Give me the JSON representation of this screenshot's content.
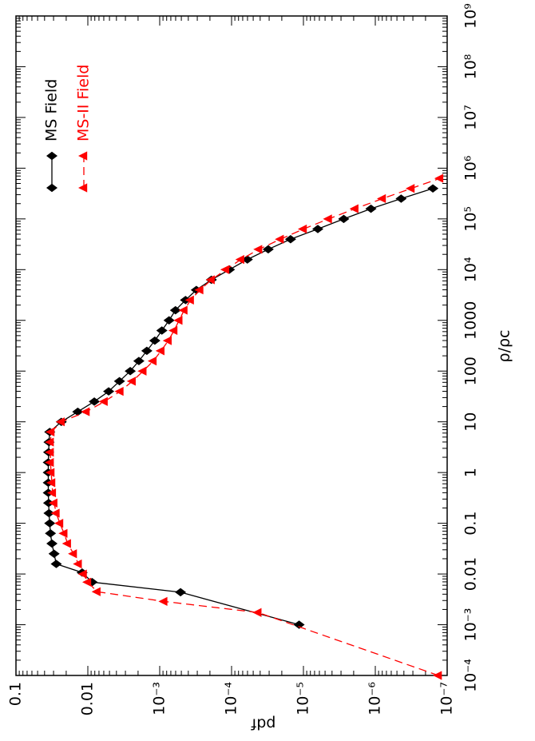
{
  "chart_data": {
    "type": "line",
    "xlabel": "ρ/ρc",
    "ylabel": "pdf",
    "xscale": "log",
    "yscale": "log",
    "xlim": [
      0.0001,
      1000000000.0
    ],
    "ylim": [
      1e-07,
      0.1
    ],
    "xticks": [
      {
        "value": 0.0001,
        "label": "10⁻⁴"
      },
      {
        "value": 0.001,
        "label": "10⁻³"
      },
      0.01,
      0.1,
      1,
      10,
      100,
      1000,
      {
        "value": 10000.0,
        "label": "10⁴"
      },
      {
        "value": 100000.0,
        "label": "10⁵"
      },
      {
        "value": 1000000.0,
        "label": "10⁶"
      },
      {
        "value": 10000000.0,
        "label": "10⁷"
      },
      {
        "value": 100000000.0,
        "label": "10⁸"
      },
      {
        "value": 1000000000.0,
        "label": "10⁹"
      }
    ],
    "yticks": [
      {
        "value": 1e-07,
        "label": "10⁻⁷"
      },
      {
        "value": 1e-06,
        "label": "10⁻⁶"
      },
      {
        "value": 1e-05,
        "label": "10⁻⁵"
      },
      {
        "value": 0.0001,
        "label": "10⁻⁴"
      },
      {
        "value": 0.001,
        "label": "10⁻³"
      },
      0.01,
      0.1
    ],
    "legend": "upper right",
    "series": [
      {
        "name": "MS Field",
        "color": "#000000",
        "marker": "diamond",
        "linestyle": "solid",
        "x": [
          0.001,
          0.00437,
          0.00692,
          0.0107,
          0.0158,
          0.0251,
          0.0398,
          0.0631,
          0.1,
          0.158,
          0.251,
          0.398,
          0.631,
          1,
          1.58,
          2.51,
          3.98,
          6.31,
          10,
          15.8,
          25.1,
          39.8,
          63.1,
          100,
          158,
          251,
          398,
          631,
          1000,
          1585,
          2512,
          3981,
          6310,
          10000,
          15850,
          25120,
          39810,
          63100,
          100000,
          158500,
          251200,
          398100
        ],
        "values": [
          1.15e-05,
          0.000513,
          0.00871,
          0.012,
          0.0275,
          0.0295,
          0.0316,
          0.0331,
          0.0339,
          0.0347,
          0.0351,
          0.0355,
          0.0355,
          0.0355,
          0.0355,
          0.0351,
          0.0347,
          0.0339,
          0.0234,
          0.0138,
          0.00813,
          0.00513,
          0.00363,
          0.00257,
          0.00195,
          0.00151,
          0.00117,
          0.000933,
          0.000741,
          0.000603,
          0.000437,
          0.000309,
          0.000191,
          0.000107,
          6.03e-05,
          3.09e-05,
          1.51e-05,
          6.31e-06,
          2.75e-06,
          1.15e-06,
          4.37e-07,
          1.58e-07
        ]
      },
      {
        "name": "MS-II Field",
        "color": "#ff0000",
        "marker": "triangle",
        "linestyle": "dashed",
        "x": [
          0.0001,
          0.00174,
          0.00288,
          0.00447,
          0.00692,
          0.01,
          0.0158,
          0.0251,
          0.0398,
          0.0631,
          0.1,
          0.158,
          0.251,
          0.398,
          0.631,
          1,
          1.58,
          2.51,
          3.98,
          6.31,
          10,
          15.8,
          25.1,
          39.8,
          63.1,
          100,
          158,
          251,
          398,
          631,
          1000,
          1585,
          2512,
          3981,
          6310,
          10000,
          15850,
          25120,
          39810,
          63100,
          100000,
          158500,
          251200,
          398100,
          631000
        ],
        "values": [
          1.32e-07,
          4.27e-05,
          0.000871,
          0.00741,
          0.01,
          0.0115,
          0.0135,
          0.0158,
          0.0191,
          0.0214,
          0.0245,
          0.0275,
          0.0295,
          0.0309,
          0.0316,
          0.0324,
          0.0331,
          0.0331,
          0.0331,
          0.0324,
          0.0234,
          0.0105,
          0.00589,
          0.00355,
          0.0024,
          0.0017,
          0.00123,
          0.000955,
          0.000759,
          0.000631,
          0.000537,
          0.000457,
          0.000372,
          0.000275,
          0.000191,
          0.00012,
          7.41e-05,
          4.17e-05,
          2.09e-05,
          1e-05,
          4.47e-06,
          1.91e-06,
          7.94e-07,
          3.16e-07,
          1.26e-07
        ]
      }
    ]
  }
}
